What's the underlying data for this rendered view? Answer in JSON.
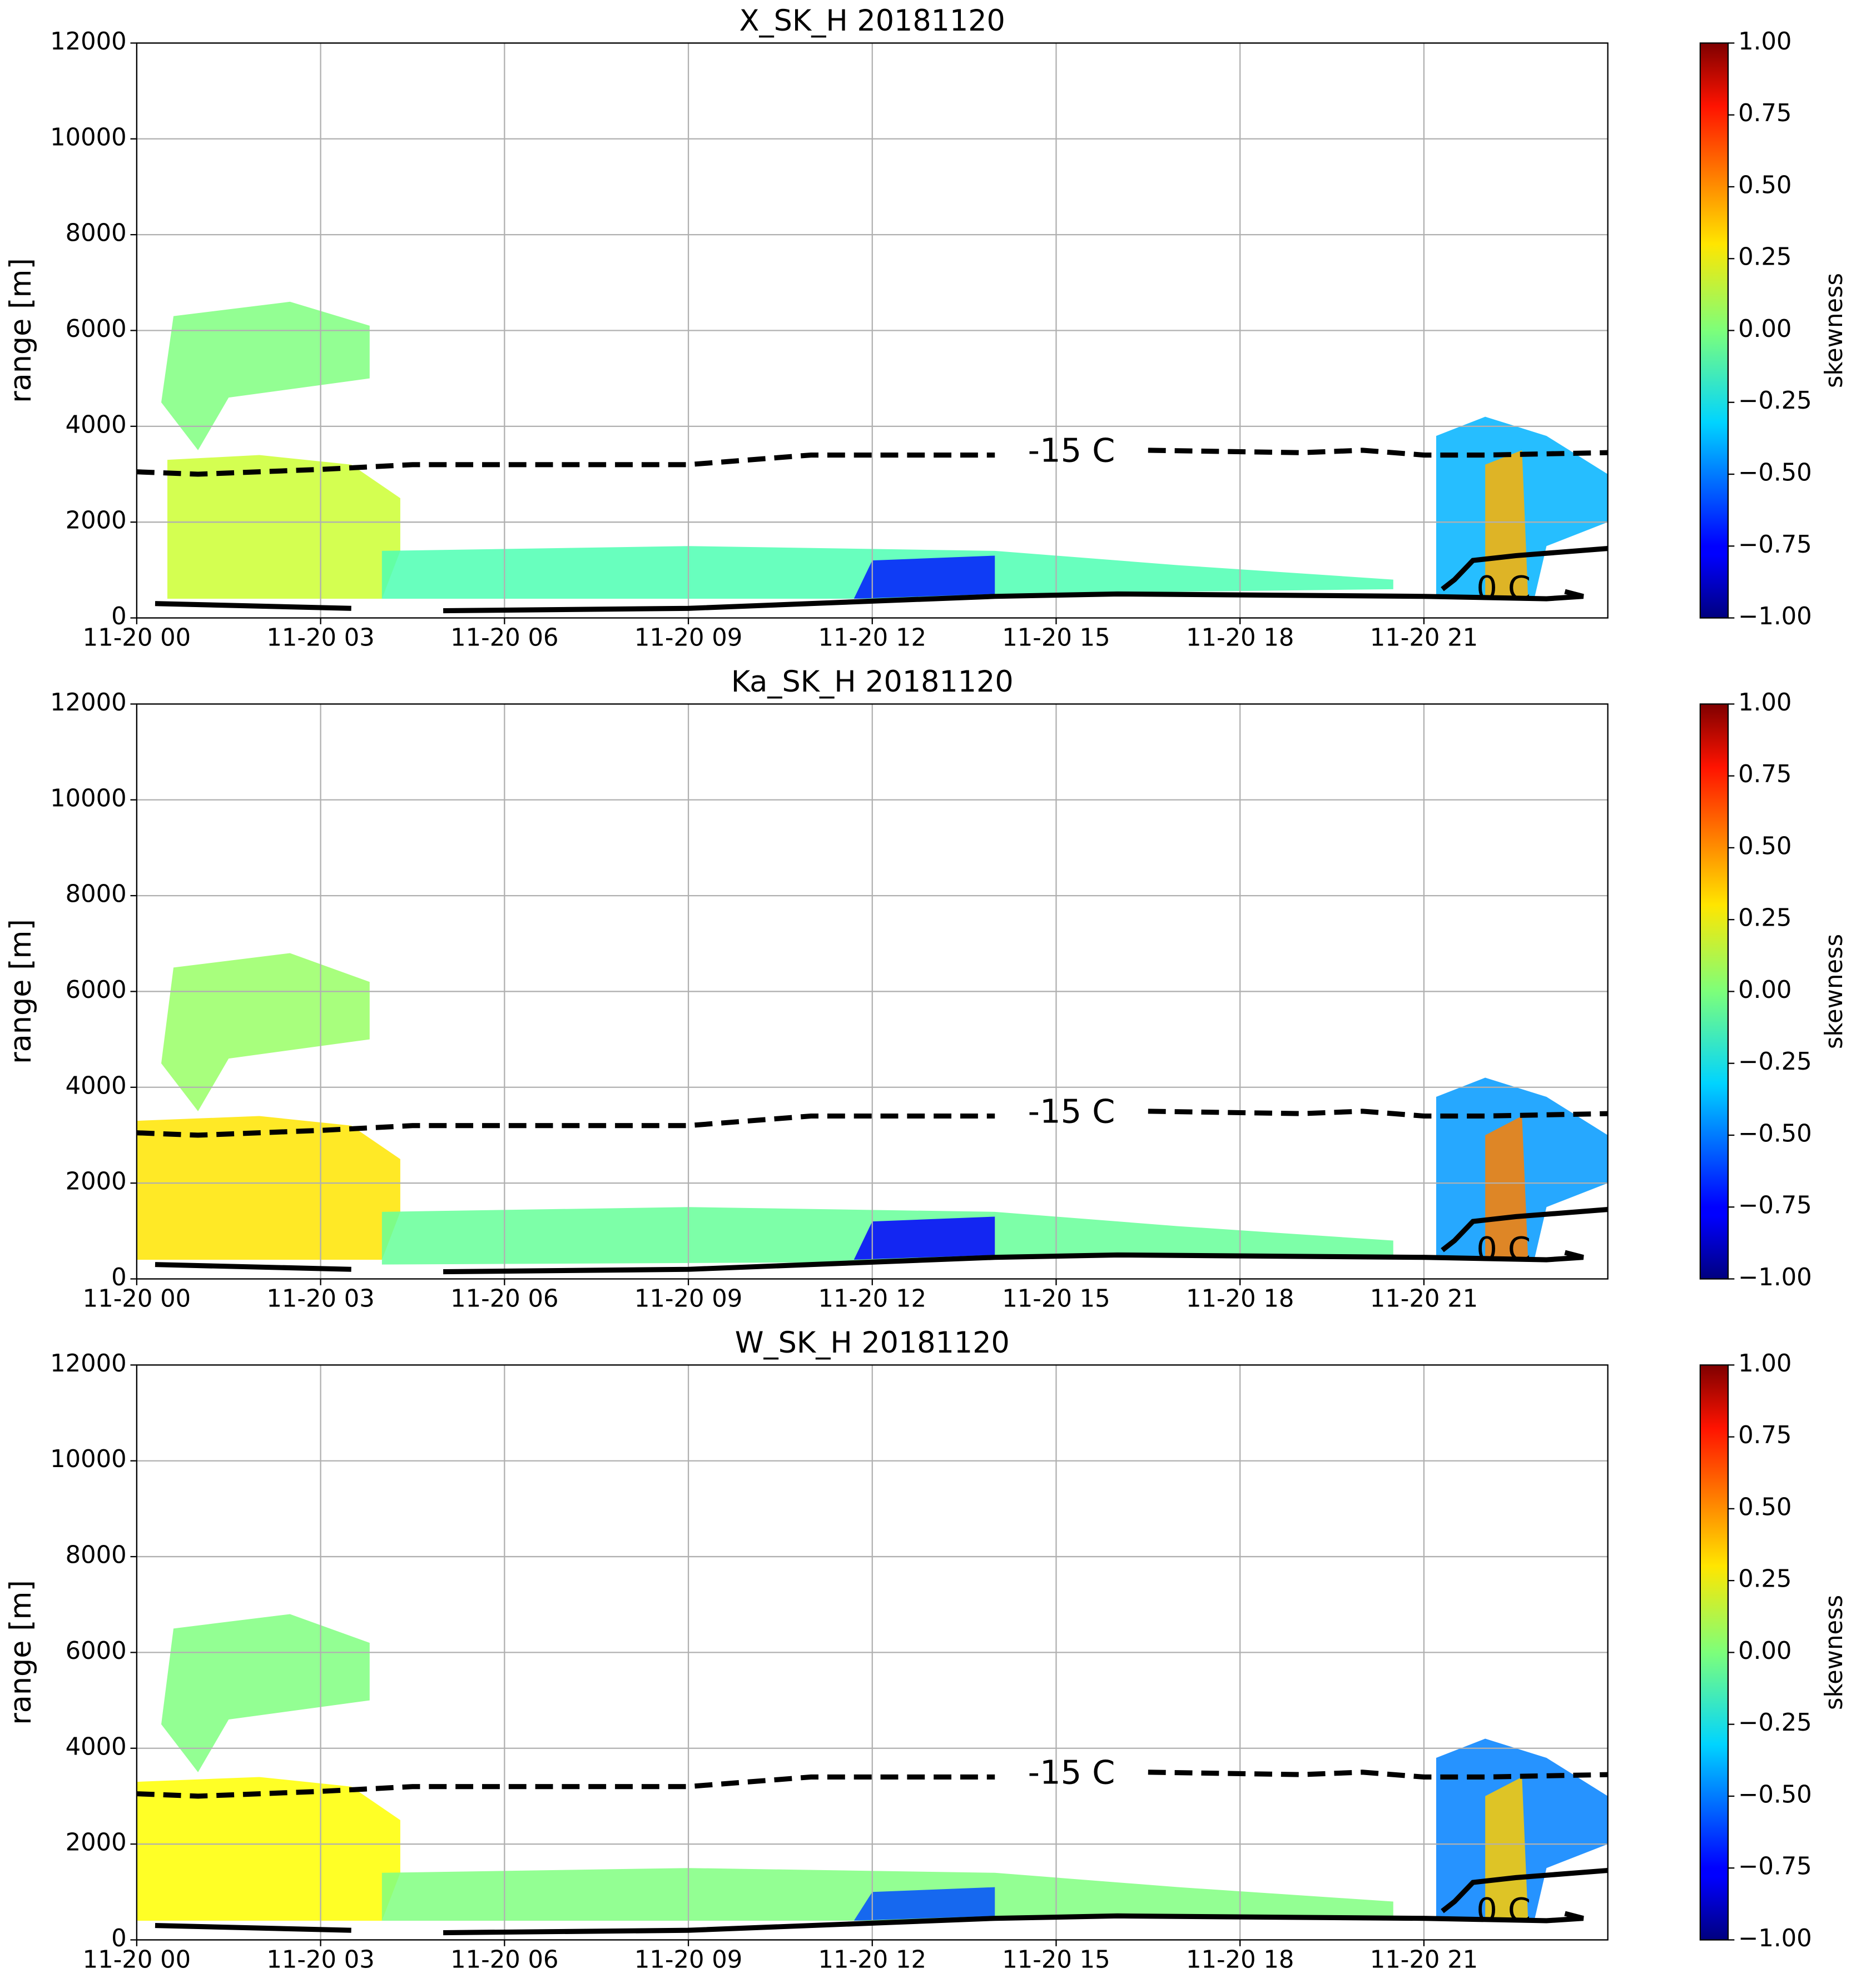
{
  "chart_data": [
    {
      "type": "heatmap",
      "title": "X_SK_H 20181120",
      "ylabel": "range [m]",
      "xlim": [
        0,
        24
      ],
      "xticks": [
        {
          "value": 0,
          "label": "11-20 00"
        },
        {
          "value": 3,
          "label": "11-20 03"
        },
        {
          "value": 6,
          "label": "11-20 06"
        },
        {
          "value": 9,
          "label": "11-20 09"
        },
        {
          "value": 12,
          "label": "11-20 12"
        },
        {
          "value": 15,
          "label": "11-20 15"
        },
        {
          "value": 18,
          "label": "11-20 18"
        },
        {
          "value": 21,
          "label": "11-20 21"
        }
      ],
      "ylim": [
        0,
        12000
      ],
      "yticks": [
        0,
        2000,
        4000,
        6000,
        8000,
        10000,
        12000
      ],
      "grid": true,
      "colorbar": {
        "label": "skewness",
        "clim": [
          -1,
          1
        ],
        "cmap": "jet",
        "ticks": [
          {
            "value": 1,
            "label": "1.00"
          },
          {
            "value": 0.75,
            "label": "0.75"
          },
          {
            "value": 0.5,
            "label": "0.50"
          },
          {
            "value": 0.25,
            "label": "0.25"
          },
          {
            "value": 0,
            "label": "0.00"
          },
          {
            "value": -0.25,
            "label": "−0.25"
          },
          {
            "value": -0.5,
            "label": "−0.50"
          },
          {
            "value": -0.75,
            "label": "−0.75"
          },
          {
            "value": -1,
            "label": "−1.00"
          }
        ]
      },
      "regions": [
        {
          "x": [
            0.4,
            0.6,
            2.5,
            3.8,
            3.8,
            1.5,
            1.0
          ],
          "y": [
            4500,
            6300,
            6600,
            6100,
            5000,
            4600,
            3500
          ],
          "value": 0.0
        },
        {
          "x": [
            0.5,
            0.5,
            2.0,
            3.5,
            4.3,
            4.3,
            4.0
          ],
          "y": [
            400,
            3300,
            3400,
            3200,
            2500,
            1400,
            400
          ],
          "value": 0.15
        },
        {
          "x": [
            4.0,
            4.0,
            9.0,
            14.0,
            17.0,
            20.5,
            20.5,
            14.0,
            12.0
          ],
          "y": [
            400,
            1400,
            1500,
            1400,
            1100,
            800,
            600,
            500,
            400
          ],
          "value": -0.1
        },
        {
          "x": [
            11.7,
            12.0,
            14.0,
            14.0
          ],
          "y": [
            400,
            1200,
            1300,
            500
          ],
          "value": -0.7
        },
        {
          "x": [
            21.2,
            21.2,
            22.0,
            23.0,
            24.0,
            24.0,
            23.0,
            22.8
          ],
          "y": [
            400,
            3800,
            4200,
            3800,
            3000,
            2000,
            1500,
            400
          ],
          "value": -0.4
        },
        {
          "x": [
            22.0,
            22.0,
            22.6,
            22.7
          ],
          "y": [
            400,
            3200,
            3500,
            400
          ],
          "value": 0.4
        }
      ],
      "contours": [
        {
          "name": "-15 C",
          "style": "dashed",
          "x": [
            0,
            1,
            3,
            4.5,
            6,
            9,
            11,
            14,
            null,
            16.5,
            19,
            20,
            21,
            22,
            24
          ],
          "y": [
            3050,
            3000,
            3100,
            3200,
            3200,
            3200,
            3400,
            3400,
            null,
            3500,
            3450,
            3500,
            3400,
            3400,
            3450
          ]
        },
        {
          "name": "0 C",
          "style": "solid",
          "x": [
            0.3,
            3.5,
            null,
            5,
            9,
            12,
            14,
            16,
            21,
            23,
            23.6,
            23.3,
            null,
            21.3,
            21.5,
            21.8,
            22.5,
            24
          ],
          "y": [
            300,
            200,
            null,
            150,
            200,
            350,
            450,
            500,
            450,
            400,
            450,
            550,
            null,
            600,
            800,
            1200,
            1300,
            1450
          ]
        }
      ]
    },
    {
      "type": "heatmap",
      "title": "Ka_SK_H 20181120",
      "ylabel": "range [m]",
      "xlim": [
        0,
        24
      ],
      "xticks": [
        {
          "value": 0,
          "label": "11-20 00"
        },
        {
          "value": 3,
          "label": "11-20 03"
        },
        {
          "value": 6,
          "label": "11-20 06"
        },
        {
          "value": 9,
          "label": "11-20 09"
        },
        {
          "value": 12,
          "label": "11-20 12"
        },
        {
          "value": 15,
          "label": "11-20 15"
        },
        {
          "value": 18,
          "label": "11-20 18"
        },
        {
          "value": 21,
          "label": "11-20 21"
        }
      ],
      "ylim": [
        0,
        12000
      ],
      "yticks": [
        0,
        2000,
        4000,
        6000,
        8000,
        10000,
        12000
      ],
      "grid": true,
      "colorbar": {
        "label": "skewness",
        "clim": [
          -1,
          1
        ],
        "cmap": "jet",
        "ticks": [
          {
            "value": 1,
            "label": "1.00"
          },
          {
            "value": 0.75,
            "label": "0.75"
          },
          {
            "value": 0.5,
            "label": "0.50"
          },
          {
            "value": 0.25,
            "label": "0.25"
          },
          {
            "value": 0,
            "label": "0.00"
          },
          {
            "value": -0.25,
            "label": "−0.25"
          },
          {
            "value": -0.5,
            "label": "−0.50"
          },
          {
            "value": -0.75,
            "label": "−0.75"
          },
          {
            "value": -1,
            "label": "−1.00"
          }
        ]
      },
      "regions": [
        {
          "x": [
            0.4,
            0.6,
            2.5,
            3.8,
            3.8,
            1.5,
            1.0
          ],
          "y": [
            4500,
            6500,
            6800,
            6200,
            5000,
            4600,
            3500
          ],
          "value": 0.05
        },
        {
          "x": [
            0.0,
            0.0,
            2.0,
            3.5,
            4.3,
            4.3,
            4.0
          ],
          "y": [
            400,
            3300,
            3400,
            3200,
            2500,
            1400,
            400
          ],
          "value": 0.3
        },
        {
          "x": [
            4.0,
            4.0,
            9.0,
            14.0,
            17.0,
            20.5,
            20.5,
            14.0,
            12.0
          ],
          "y": [
            300,
            1400,
            1500,
            1400,
            1100,
            800,
            500,
            450,
            350
          ],
          "value": -0.05
        },
        {
          "x": [
            11.7,
            12.0,
            14.0,
            14.0
          ],
          "y": [
            400,
            1200,
            1300,
            500
          ],
          "value": -0.75
        },
        {
          "x": [
            21.2,
            21.2,
            22.0,
            23.0,
            24.0,
            24.0,
            23.0,
            22.8
          ],
          "y": [
            400,
            3800,
            4200,
            3800,
            3000,
            2000,
            1500,
            400
          ],
          "value": -0.45
        },
        {
          "x": [
            22.0,
            22.0,
            22.6,
            22.7
          ],
          "y": [
            400,
            3000,
            3400,
            400
          ],
          "value": 0.5
        }
      ],
      "contours": [
        {
          "name": "-15 C",
          "style": "dashed",
          "x": [
            0,
            1,
            3,
            4.5,
            6,
            9,
            11,
            14,
            null,
            16.5,
            19,
            20,
            21,
            22,
            24
          ],
          "y": [
            3050,
            3000,
            3100,
            3200,
            3200,
            3200,
            3400,
            3400,
            null,
            3500,
            3450,
            3500,
            3400,
            3400,
            3450
          ]
        },
        {
          "name": "0 C",
          "style": "solid",
          "x": [
            0.3,
            3.5,
            null,
            5,
            9,
            12,
            14,
            16,
            21,
            23,
            23.6,
            23.3,
            null,
            21.3,
            21.5,
            21.8,
            22.5,
            24
          ],
          "y": [
            300,
            200,
            null,
            150,
            200,
            350,
            450,
            500,
            450,
            400,
            450,
            550,
            null,
            600,
            800,
            1200,
            1300,
            1450
          ]
        }
      ]
    },
    {
      "type": "heatmap",
      "title": "W_SK_H 20181120",
      "ylabel": "range [m]",
      "xlim": [
        0,
        24
      ],
      "xticks": [
        {
          "value": 0,
          "label": "11-20 00"
        },
        {
          "value": 3,
          "label": "11-20 03"
        },
        {
          "value": 6,
          "label": "11-20 06"
        },
        {
          "value": 9,
          "label": "11-20 09"
        },
        {
          "value": 12,
          "label": "11-20 12"
        },
        {
          "value": 15,
          "label": "11-20 15"
        },
        {
          "value": 18,
          "label": "11-20 18"
        },
        {
          "value": 21,
          "label": "11-20 21"
        }
      ],
      "ylim": [
        0,
        12000
      ],
      "yticks": [
        0,
        2000,
        4000,
        6000,
        8000,
        10000,
        12000
      ],
      "grid": true,
      "colorbar": {
        "label": "skewness",
        "clim": [
          -1,
          1
        ],
        "cmap": "jet",
        "ticks": [
          {
            "value": 1,
            "label": "1.00"
          },
          {
            "value": 0.75,
            "label": "0.75"
          },
          {
            "value": 0.5,
            "label": "0.50"
          },
          {
            "value": 0.25,
            "label": "0.25"
          },
          {
            "value": 0,
            "label": "0.00"
          },
          {
            "value": -0.25,
            "label": "−0.25"
          },
          {
            "value": -0.5,
            "label": "−0.50"
          },
          {
            "value": -0.75,
            "label": "−0.75"
          },
          {
            "value": -1,
            "label": "−1.00"
          }
        ]
      },
      "regions": [
        {
          "x": [
            0.4,
            0.6,
            2.5,
            3.8,
            3.8,
            1.5,
            1.0
          ],
          "y": [
            4500,
            6500,
            6800,
            6200,
            5000,
            4600,
            3500
          ],
          "value": 0.0
        },
        {
          "x": [
            0.0,
            0.0,
            2.0,
            3.5,
            4.3,
            4.3,
            4.0
          ],
          "y": [
            400,
            3300,
            3400,
            3200,
            2500,
            1400,
            400
          ],
          "value": 0.25
        },
        {
          "x": [
            4.0,
            4.0,
            9.0,
            14.0,
            17.0,
            20.5,
            20.5,
            14.0,
            12.0
          ],
          "y": [
            400,
            1400,
            1500,
            1400,
            1100,
            800,
            500,
            450,
            400
          ],
          "value": 0.0
        },
        {
          "x": [
            11.7,
            12.0,
            14.0,
            14.0
          ],
          "y": [
            400,
            1000,
            1100,
            500
          ],
          "value": -0.6
        },
        {
          "x": [
            21.2,
            21.2,
            22.0,
            23.0,
            24.0,
            24.0,
            23.0,
            22.8
          ],
          "y": [
            400,
            3800,
            4200,
            3800,
            3000,
            2000,
            1500,
            400
          ],
          "value": -0.5
        },
        {
          "x": [
            22.0,
            22.0,
            22.6,
            22.7
          ],
          "y": [
            400,
            3000,
            3400,
            400
          ],
          "value": 0.35
        }
      ],
      "contours": [
        {
          "name": "-15 C",
          "style": "dashed",
          "x": [
            0,
            1,
            3,
            4.5,
            6,
            9,
            11,
            14,
            null,
            16.5,
            19,
            20,
            21,
            22,
            24
          ],
          "y": [
            3050,
            3000,
            3100,
            3200,
            3200,
            3200,
            3400,
            3400,
            null,
            3500,
            3450,
            3500,
            3400,
            3400,
            3450
          ]
        },
        {
          "name": "0 C",
          "style": "solid",
          "x": [
            0.3,
            3.5,
            null,
            5,
            9,
            12,
            14,
            16,
            21,
            23,
            23.6,
            23.3,
            null,
            21.3,
            21.5,
            21.8,
            22.5,
            24
          ],
          "y": [
            300,
            200,
            null,
            150,
            200,
            350,
            450,
            500,
            450,
            400,
            450,
            550,
            null,
            600,
            800,
            1200,
            1300,
            1450
          ]
        }
      ]
    }
  ]
}
